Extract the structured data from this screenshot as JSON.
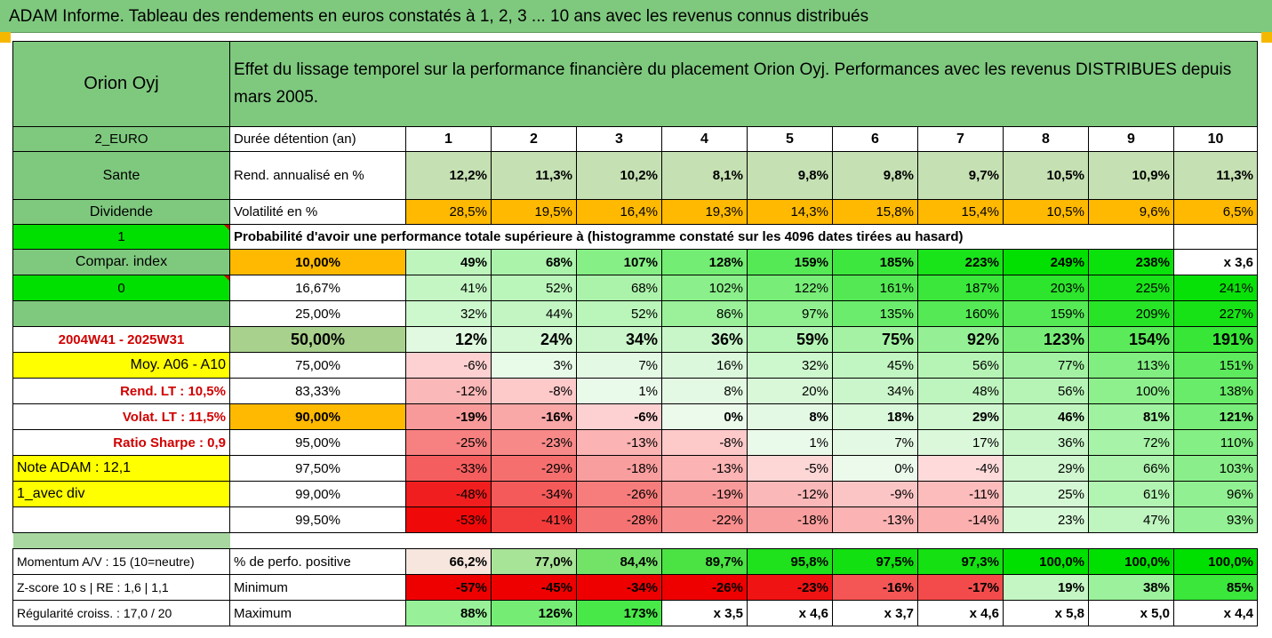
{
  "title": "ADAM Informe. Tableau des rendements en euros constatés à 1, 2, 3 ... 10 ans avec les revenus connus distribués",
  "name": "Orion Oyj",
  "description": "Effet du lissage temporel sur la performance financière du placement Orion Oyj. Performances avec les revenus DISTRIBUES depuis mars 2005.",
  "left": {
    "currency": "2_EURO",
    "sector": "Sante",
    "dividend": "Dividende",
    "flag1": "1",
    "compar": "Compar. index",
    "flag0": "0",
    "period": "2004W41 - 2025W31",
    "moy": "Moy. A06 - A10",
    "rend_lt": "Rend. LT :   10,5%",
    "volat_lt": "Volat. LT :   11,5%",
    "sharpe": "Ratio Sharpe :   0,9",
    "note": "Note ADAM : 12,1",
    "div": "1_avec div",
    "momentum": "Momentum A/V : 15 (10=neutre)",
    "zscore": "Z-score 10 s  | RE : 1,6 | 1,1",
    "regul": "Régularité croiss. : 17,0 / 20"
  },
  "labels": {
    "duree": "Durée détention (an)",
    "rend": "Rend. annualisé en %",
    "volat": "Volatilité en %",
    "proba": "Probabilité d'avoir une performance totale supérieure à (histogramme constaté sur les 4096 dates tirées au hasard)",
    "pos": "% de perfo. positive",
    "min": "Minimum",
    "max": "Maximum"
  },
  "years": [
    "1",
    "2",
    "3",
    "4",
    "5",
    "6",
    "7",
    "8",
    "9",
    "10"
  ],
  "rend": [
    "12,2%",
    "11,3%",
    "10,2%",
    "8,1%",
    "9,8%",
    "9,8%",
    "9,7%",
    "10,5%",
    "10,9%",
    "11,3%"
  ],
  "volat": [
    "28,5%",
    "19,5%",
    "16,4%",
    "19,3%",
    "14,3%",
    "15,8%",
    "15,4%",
    "10,5%",
    "9,6%",
    "6,5%"
  ],
  "prob_rows": [
    {
      "p": "10,00%",
      "vals": [
        "49%",
        "68%",
        "107%",
        "128%",
        "159%",
        "185%",
        "223%",
        "249%",
        "238%",
        "x 3,6"
      ]
    },
    {
      "p": "16,67%",
      "vals": [
        "41%",
        "52%",
        "68%",
        "102%",
        "122%",
        "161%",
        "187%",
        "203%",
        "225%",
        "241%"
      ]
    },
    {
      "p": "25,00%",
      "vals": [
        "32%",
        "44%",
        "52%",
        "86%",
        "97%",
        "135%",
        "160%",
        "159%",
        "209%",
        "227%"
      ]
    },
    {
      "p": "50,00%",
      "vals": [
        "12%",
        "24%",
        "34%",
        "36%",
        "59%",
        "75%",
        "92%",
        "123%",
        "154%",
        "191%"
      ]
    },
    {
      "p": "75,00%",
      "vals": [
        "-6%",
        "3%",
        "7%",
        "16%",
        "32%",
        "45%",
        "56%",
        "77%",
        "113%",
        "151%"
      ]
    },
    {
      "p": "83,33%",
      "vals": [
        "-12%",
        "-8%",
        "1%",
        "8%",
        "20%",
        "34%",
        "48%",
        "56%",
        "100%",
        "138%"
      ]
    },
    {
      "p": "90,00%",
      "vals": [
        "-19%",
        "-16%",
        "-6%",
        "0%",
        "8%",
        "18%",
        "29%",
        "46%",
        "81%",
        "121%"
      ]
    },
    {
      "p": "95,00%",
      "vals": [
        "-25%",
        "-23%",
        "-13%",
        "-8%",
        "1%",
        "7%",
        "17%",
        "36%",
        "72%",
        "110%"
      ]
    },
    {
      "p": "97,50%",
      "vals": [
        "-33%",
        "-29%",
        "-18%",
        "-13%",
        "-5%",
        "0%",
        "-4%",
        "29%",
        "66%",
        "103%"
      ]
    },
    {
      "p": "99,00%",
      "vals": [
        "-48%",
        "-34%",
        "-26%",
        "-19%",
        "-12%",
        "-9%",
        "-11%",
        "25%",
        "61%",
        "96%"
      ]
    },
    {
      "p": "99,50%",
      "vals": [
        "-53%",
        "-41%",
        "-28%",
        "-22%",
        "-18%",
        "-13%",
        "-14%",
        "23%",
        "47%",
        "93%"
      ]
    }
  ],
  "pos": [
    "66,2%",
    "77,0%",
    "84,4%",
    "89,7%",
    "95,8%",
    "97,5%",
    "97,3%",
    "100,0%",
    "100,0%",
    "100,0%"
  ],
  "min": [
    "-57%",
    "-45%",
    "-34%",
    "-26%",
    "-23%",
    "-16%",
    "-17%",
    "19%",
    "38%",
    "85%"
  ],
  "max": [
    "88%",
    "126%",
    "173%",
    "x 3,5",
    "x 4,6",
    "x 3,7",
    "x 4,6",
    "x 5,8",
    "x 5,0",
    "x 4,4"
  ]
}
